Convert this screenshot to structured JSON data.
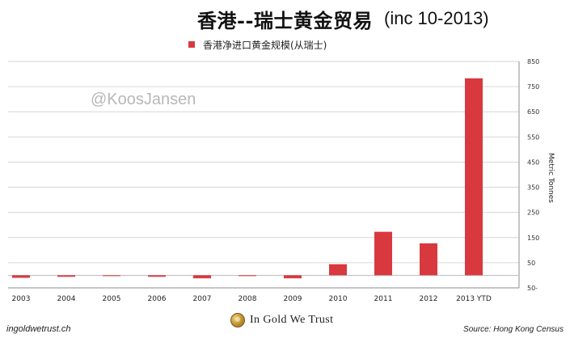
{
  "header": {
    "title": "香港--瑞士黄金贸易",
    "subtitle": "(inc 10-2013)"
  },
  "watermark": "@KoosJansen",
  "footer": {
    "left": "ingoldwetrust.ch",
    "brand": "In Gold We Trust",
    "right": "Source: Hong Kong Census"
  },
  "chart_data": {
    "type": "bar",
    "categories": [
      "2003",
      "2004",
      "2005",
      "2006",
      "2007",
      "2008",
      "2009",
      "2010",
      "2011",
      "2012",
      "2013 YTD"
    ],
    "series": [
      {
        "name": "香港净进口黄金规模(从瑞士)",
        "values": [
          -10,
          -6,
          -2,
          -6,
          -12,
          -1,
          -12,
          44,
          173,
          127,
          783
        ],
        "color": "#d8393f"
      }
    ],
    "ylabel": "Metric Tonnes",
    "ylim": [
      -50,
      850
    ],
    "yticks": [
      850,
      750,
      650,
      550,
      450,
      350,
      250,
      150,
      50,
      -50
    ],
    "ytick_labels": [
      "850",
      "750",
      "650",
      "550",
      "450",
      "350",
      "250",
      "150",
      "50",
      "50-"
    ],
    "legend_position": "top-center",
    "grid": "horizontal"
  }
}
